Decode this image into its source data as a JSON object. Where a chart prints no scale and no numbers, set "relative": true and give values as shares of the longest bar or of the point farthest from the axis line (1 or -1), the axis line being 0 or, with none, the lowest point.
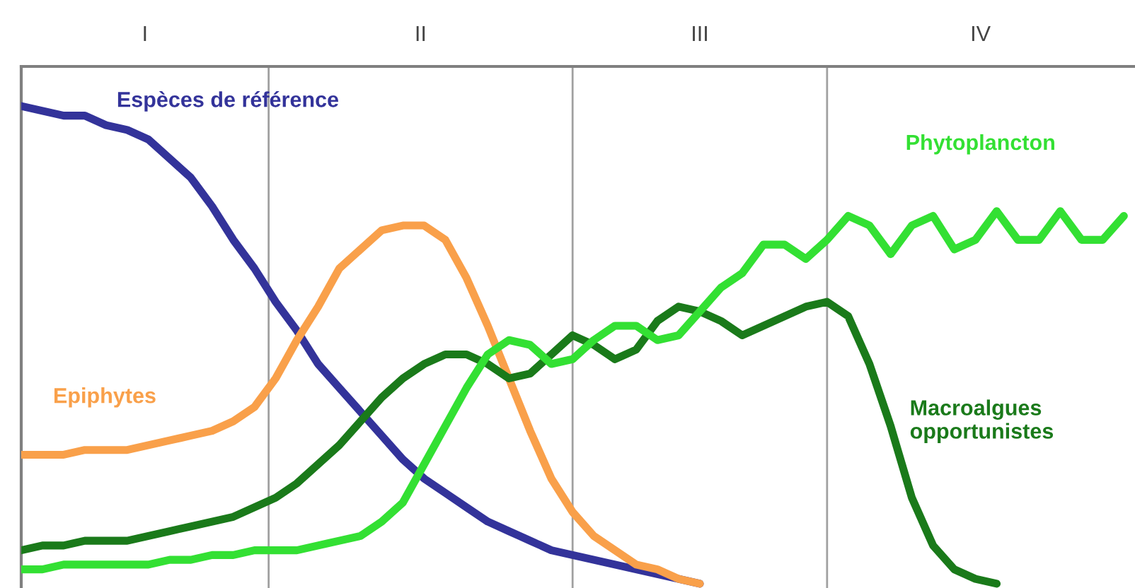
{
  "chart_data": {
    "type": "line",
    "relative": true,
    "legend": false,
    "categories": [
      null,
      null,
      null,
      null,
      null,
      null,
      null,
      null,
      null,
      null,
      null,
      null,
      null,
      null,
      null,
      null,
      null,
      null,
      null,
      null,
      null,
      null,
      null,
      null,
      null,
      null,
      null,
      null,
      null,
      null,
      null,
      null,
      null,
      null,
      null,
      null,
      null,
      null,
      null,
      null,
      null,
      null,
      null,
      null,
      null,
      null,
      null,
      null,
      null,
      null,
      null,
      null,
      null
    ],
    "annotations": [
      "I",
      "II",
      "III",
      "IV"
    ],
    "series": [
      {
        "name": "Espèces de référence",
        "color": "#33339a",
        "values": [
          1.0,
          0.99,
          0.98,
          0.98,
          0.96,
          0.95,
          0.93,
          0.89,
          0.85,
          0.79,
          0.72,
          0.66,
          0.59,
          0.53,
          0.46,
          0.41,
          0.36,
          0.31,
          0.26,
          0.22,
          0.19,
          0.16,
          0.13,
          0.11,
          0.09,
          0.07,
          0.06,
          0.05,
          0.04,
          0.03,
          0.02,
          0.01,
          0,
          null,
          null,
          null,
          null,
          null,
          null,
          null,
          null,
          null,
          null,
          null,
          null,
          null,
          null,
          null,
          null,
          null,
          null,
          null,
          null
        ]
      },
      {
        "name": "Epiphytes",
        "color": "#f9a04a",
        "values": [
          0.27,
          0.27,
          0.27,
          0.28,
          0.28,
          0.28,
          0.29,
          0.3,
          0.31,
          0.32,
          0.34,
          0.37,
          0.43,
          0.51,
          0.58,
          0.66,
          0.7,
          0.74,
          0.75,
          0.75,
          0.72,
          0.64,
          0.54,
          0.43,
          0.32,
          0.22,
          0.15,
          0.1,
          0.07,
          0.04,
          0.03,
          0.01,
          0,
          null,
          null,
          null,
          null,
          null,
          null,
          null,
          null,
          null,
          null,
          null,
          null,
          null,
          null,
          null,
          null,
          null,
          null,
          null,
          null
        ]
      },
      {
        "name": "Macroalgues\nopportunistes",
        "color": "#1a7a1a",
        "values": [
          0.07,
          0.08,
          0.08,
          0.09,
          0.09,
          0.09,
          0.1,
          0.11,
          0.12,
          0.13,
          0.14,
          0.16,
          0.18,
          0.21,
          0.25,
          0.29,
          0.34,
          0.39,
          0.43,
          0.46,
          0.48,
          0.48,
          0.46,
          0.43,
          0.44,
          0.48,
          0.52,
          0.5,
          0.47,
          0.49,
          0.55,
          0.58,
          0.57,
          0.55,
          0.52,
          0.54,
          0.56,
          0.58,
          0.59,
          0.56,
          0.46,
          0.33,
          0.18,
          0.08,
          0.03,
          0.01,
          0,
          null,
          null,
          null,
          null,
          null,
          null
        ]
      },
      {
        "name": "Phytoplancton",
        "color": "#33e033",
        "values": [
          0.03,
          0.03,
          0.04,
          0.04,
          0.04,
          0.04,
          0.04,
          0.05,
          0.05,
          0.06,
          0.06,
          0.07,
          0.07,
          0.07,
          0.08,
          0.09,
          0.1,
          0.13,
          0.17,
          0.25,
          0.33,
          0.41,
          0.48,
          0.51,
          0.5,
          0.46,
          0.47,
          0.51,
          0.54,
          0.54,
          0.51,
          0.52,
          0.57,
          0.62,
          0.65,
          0.71,
          0.71,
          0.68,
          0.72,
          0.77,
          0.75,
          0.69,
          0.75,
          0.77,
          0.7,
          0.72,
          0.78,
          0.72,
          0.72,
          0.78,
          0.72,
          0.72,
          0.77
        ]
      }
    ]
  }
}
